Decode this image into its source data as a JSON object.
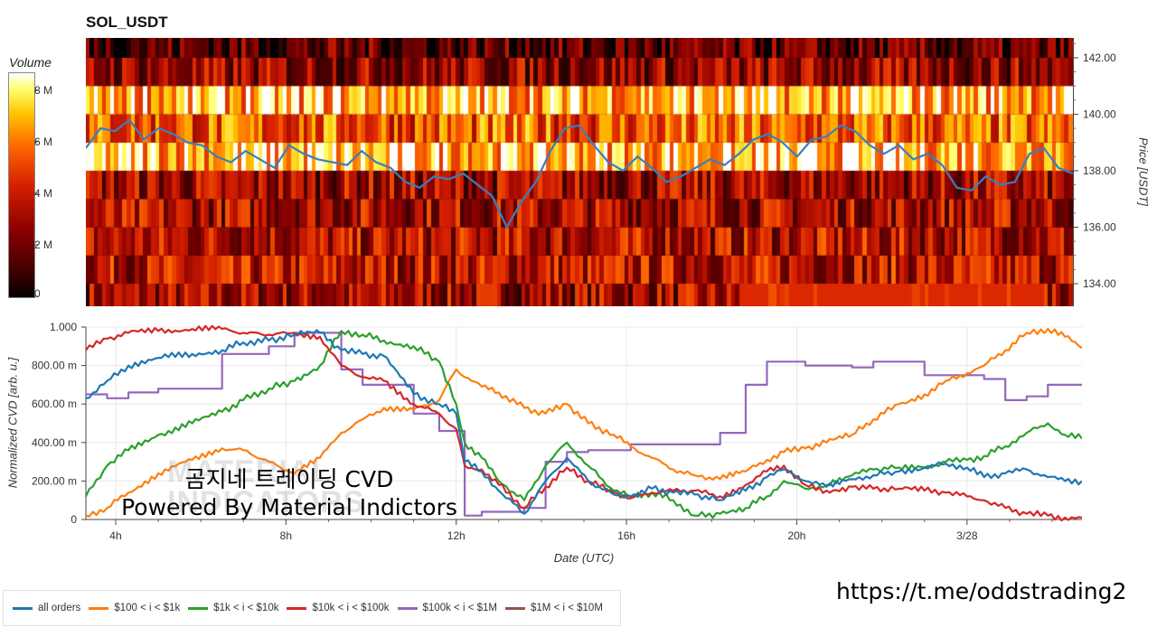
{
  "title": "SOL_USDT",
  "watermark": {
    "line1": "곰지네 트레이딩 CVD",
    "line2": "Powered By Material Indictors",
    "ghost": "MATERIAL\nINDICATORS"
  },
  "url": "https://t.me/oddstrading2",
  "colors": {
    "all_orders": "#1f77b4",
    "s100_1k": "#ff7f0e",
    "s1k_10k": "#2ca02c",
    "s10k_100k": "#d62728",
    "s100k_1m": "#9467bd",
    "s1m_10m": "#8c564b"
  },
  "chart_data": [
    {
      "type": "heatmap",
      "colorbar": {
        "title": "Volume",
        "ticks": [
          "0",
          "2 M",
          "4 M",
          "6 M",
          "8 M"
        ],
        "tick_values": [
          0,
          2,
          4,
          6,
          8
        ],
        "range": [
          0,
          8.7
        ]
      },
      "y_axis": {
        "label": "Price [USDT]",
        "ticks": [
          "134.00",
          "136.00",
          "138.00",
          "140.00",
          "142.00"
        ],
        "tick_values": [
          134,
          136,
          138,
          140,
          142
        ],
        "range": [
          133.2,
          142.7
        ]
      },
      "price_bands": [
        133.5,
        134.5,
        135.5,
        136.5,
        137.5,
        138.5,
        139.5,
        140.5,
        141.5,
        142.5
      ],
      "band_intensity": [
        0.35,
        0.42,
        0.4,
        0.38,
        0.35,
        0.82,
        0.62,
        0.8,
        0.32,
        0.18
      ],
      "price_series": [
        138.8,
        139.5,
        139.4,
        139.8,
        139.1,
        139.5,
        139.3,
        139.0,
        138.9,
        138.5,
        138.3,
        138.7,
        138.4,
        138.1,
        138.9,
        138.6,
        138.4,
        138.3,
        138.2,
        138.7,
        138.3,
        138.1,
        137.6,
        137.4,
        137.8,
        137.7,
        137.9,
        137.5,
        137.1,
        136.0,
        136.9,
        137.6,
        138.7,
        139.5,
        139.6,
        138.9,
        138.3,
        138.0,
        138.5,
        138.1,
        137.6,
        137.8,
        138.1,
        138.4,
        138.2,
        138.6,
        139.1,
        139.3,
        139.0,
        138.5,
        139.1,
        139.2,
        139.6,
        139.4,
        138.9,
        138.6,
        138.9,
        138.4,
        138.6,
        138.2,
        137.4,
        137.3,
        137.8,
        137.5,
        137.6,
        138.6,
        138.8,
        138.1,
        137.9
      ],
      "x_range": [
        3.0,
        14.9
      ]
    },
    {
      "type": "line",
      "x_axis": {
        "label": "Date (UTC)",
        "ticks": [
          "4h",
          "8h",
          "12h",
          "16h",
          "20h",
          "3/28"
        ],
        "tick_values": [
          4,
          8,
          12,
          16,
          20,
          24
        ],
        "range": [
          3.3,
          26.7
        ]
      },
      "y_axis": {
        "label": "Normalized CVD [arb. u.]",
        "ticks": [
          "0",
          "200.00 m",
          "400.00 m",
          "600.00 m",
          "800.00 m",
          "1.000"
        ],
        "tick_values": [
          0,
          0.2,
          0.4,
          0.6,
          0.8,
          1.0
        ],
        "range": [
          0,
          1.0
        ]
      },
      "grid": true,
      "series": [
        {
          "name": "all orders",
          "color": "#1f77b4",
          "x": [
            3.3,
            3.8,
            4.3,
            5.0,
            5.8,
            6.5,
            7.0,
            7.6,
            8.2,
            8.8,
            9.3,
            9.8,
            10.3,
            11.0,
            11.6,
            12.0,
            12.2,
            12.6,
            13.0,
            13.6,
            14.1,
            14.6,
            15.1,
            15.7,
            16.1,
            16.6,
            17.1,
            17.6,
            18.2,
            18.8,
            19.3,
            19.7,
            20.2,
            20.7,
            21.3,
            21.8,
            22.4,
            23.0,
            23.5,
            24.0,
            24.4,
            24.9,
            25.4,
            25.9,
            26.3,
            26.7
          ],
          "y": [
            0.63,
            0.72,
            0.8,
            0.84,
            0.86,
            0.88,
            0.92,
            0.93,
            0.96,
            0.97,
            0.88,
            0.86,
            0.85,
            0.65,
            0.6,
            0.55,
            0.3,
            0.25,
            0.15,
            0.03,
            0.2,
            0.32,
            0.2,
            0.13,
            0.12,
            0.16,
            0.14,
            0.13,
            0.1,
            0.15,
            0.22,
            0.26,
            0.2,
            0.17,
            0.21,
            0.23,
            0.25,
            0.27,
            0.29,
            0.27,
            0.22,
            0.24,
            0.26,
            0.22,
            0.2,
            0.2
          ]
        },
        {
          "name": "$100 < i < $1k",
          "color": "#ff7f0e",
          "x": [
            3.3,
            3.8,
            4.3,
            5.0,
            5.8,
            6.5,
            7.0,
            7.6,
            8.2,
            8.8,
            9.3,
            9.8,
            10.3,
            11.0,
            11.6,
            12.0,
            12.2,
            12.6,
            13.0,
            13.6,
            14.1,
            14.6,
            15.1,
            15.7,
            16.1,
            16.6,
            17.1,
            17.6,
            18.2,
            18.8,
            19.3,
            19.7,
            20.2,
            20.7,
            21.3,
            21.8,
            22.4,
            23.0,
            23.5,
            24.0,
            24.4,
            24.9,
            25.4,
            25.9,
            26.3,
            26.7
          ],
          "y": [
            0.02,
            0.06,
            0.14,
            0.24,
            0.31,
            0.37,
            0.36,
            0.3,
            0.24,
            0.32,
            0.45,
            0.52,
            0.58,
            0.57,
            0.62,
            0.78,
            0.74,
            0.69,
            0.66,
            0.58,
            0.55,
            0.6,
            0.5,
            0.44,
            0.38,
            0.32,
            0.26,
            0.23,
            0.21,
            0.25,
            0.31,
            0.35,
            0.37,
            0.4,
            0.44,
            0.52,
            0.6,
            0.65,
            0.72,
            0.76,
            0.8,
            0.88,
            0.97,
            0.99,
            0.95,
            0.89
          ]
        },
        {
          "name": "$1k < i < $10k",
          "color": "#2ca02c",
          "x": [
            3.3,
            3.8,
            4.3,
            5.0,
            5.8,
            6.5,
            7.0,
            7.6,
            8.2,
            8.8,
            9.3,
            9.8,
            10.3,
            11.0,
            11.6,
            12.0,
            12.2,
            12.6,
            13.0,
            13.6,
            14.1,
            14.6,
            15.1,
            15.7,
            16.1,
            16.6,
            17.1,
            17.6,
            18.2,
            18.8,
            19.3,
            19.7,
            20.2,
            20.7,
            21.3,
            21.8,
            22.4,
            23.0,
            23.5,
            24.0,
            24.4,
            24.9,
            25.4,
            25.9,
            26.3,
            26.7
          ],
          "y": [
            0.12,
            0.28,
            0.36,
            0.44,
            0.5,
            0.56,
            0.62,
            0.68,
            0.72,
            0.8,
            0.98,
            0.96,
            0.93,
            0.9,
            0.82,
            0.6,
            0.4,
            0.32,
            0.2,
            0.1,
            0.28,
            0.4,
            0.28,
            0.15,
            0.12,
            0.14,
            0.1,
            0.02,
            0.03,
            0.06,
            0.12,
            0.2,
            0.16,
            0.18,
            0.23,
            0.26,
            0.27,
            0.27,
            0.3,
            0.31,
            0.33,
            0.38,
            0.45,
            0.5,
            0.44,
            0.42
          ]
        },
        {
          "name": "$10k < i < $100k",
          "color": "#d62728",
          "x": [
            3.3,
            3.8,
            4.3,
            5.0,
            5.8,
            6.5,
            7.0,
            7.6,
            8.2,
            8.8,
            9.3,
            9.8,
            10.3,
            11.0,
            11.6,
            12.0,
            12.2,
            12.6,
            13.0,
            13.6,
            14.1,
            14.6,
            15.1,
            15.7,
            16.1,
            16.6,
            17.1,
            17.6,
            18.2,
            18.8,
            19.3,
            19.7,
            20.2,
            20.7,
            21.3,
            21.8,
            22.4,
            23.0,
            23.5,
            24.0,
            24.4,
            24.9,
            25.4,
            25.9,
            26.3,
            26.7
          ],
          "y": [
            0.88,
            0.94,
            0.97,
            0.98,
            0.99,
            0.99,
            0.97,
            0.96,
            0.97,
            0.95,
            0.8,
            0.74,
            0.72,
            0.6,
            0.55,
            0.47,
            0.28,
            0.26,
            0.18,
            0.06,
            0.17,
            0.27,
            0.2,
            0.14,
            0.11,
            0.14,
            0.15,
            0.15,
            0.12,
            0.18,
            0.25,
            0.28,
            0.18,
            0.15,
            0.17,
            0.16,
            0.16,
            0.15,
            0.14,
            0.12,
            0.1,
            0.06,
            0.03,
            0.02,
            0.01,
            0.01
          ]
        },
        {
          "name": "$100k < i < $1M",
          "color": "#9467bd",
          "x": [
            3.3,
            3.8,
            4.3,
            5.0,
            5.8,
            6.5,
            7.0,
            7.6,
            8.2,
            8.8,
            9.3,
            9.8,
            10.3,
            11.0,
            11.6,
            12.0,
            12.2,
            12.6,
            13.0,
            13.6,
            14.1,
            14.6,
            15.1,
            15.7,
            16.1,
            16.6,
            17.1,
            17.6,
            18.2,
            18.8,
            19.3,
            19.7,
            20.2,
            20.7,
            21.3,
            21.8,
            22.4,
            23.0,
            23.5,
            24.0,
            24.4,
            24.9,
            25.4,
            25.9,
            26.3,
            26.7
          ],
          "y": [
            0.65,
            0.63,
            0.66,
            0.68,
            0.68,
            0.86,
            0.86,
            0.9,
            0.97,
            0.97,
            0.78,
            0.7,
            0.7,
            0.55,
            0.46,
            0.46,
            0.02,
            0.04,
            0.04,
            0.06,
            0.3,
            0.35,
            0.36,
            0.36,
            0.39,
            0.39,
            0.39,
            0.39,
            0.45,
            0.7,
            0.82,
            0.82,
            0.8,
            0.8,
            0.79,
            0.82,
            0.82,
            0.75,
            0.75,
            0.75,
            0.73,
            0.62,
            0.64,
            0.7,
            0.7,
            0.7
          ]
        },
        {
          "name": "$1M < i < $10M",
          "color": "#8c564b",
          "x": [],
          "y": []
        }
      ]
    }
  ]
}
